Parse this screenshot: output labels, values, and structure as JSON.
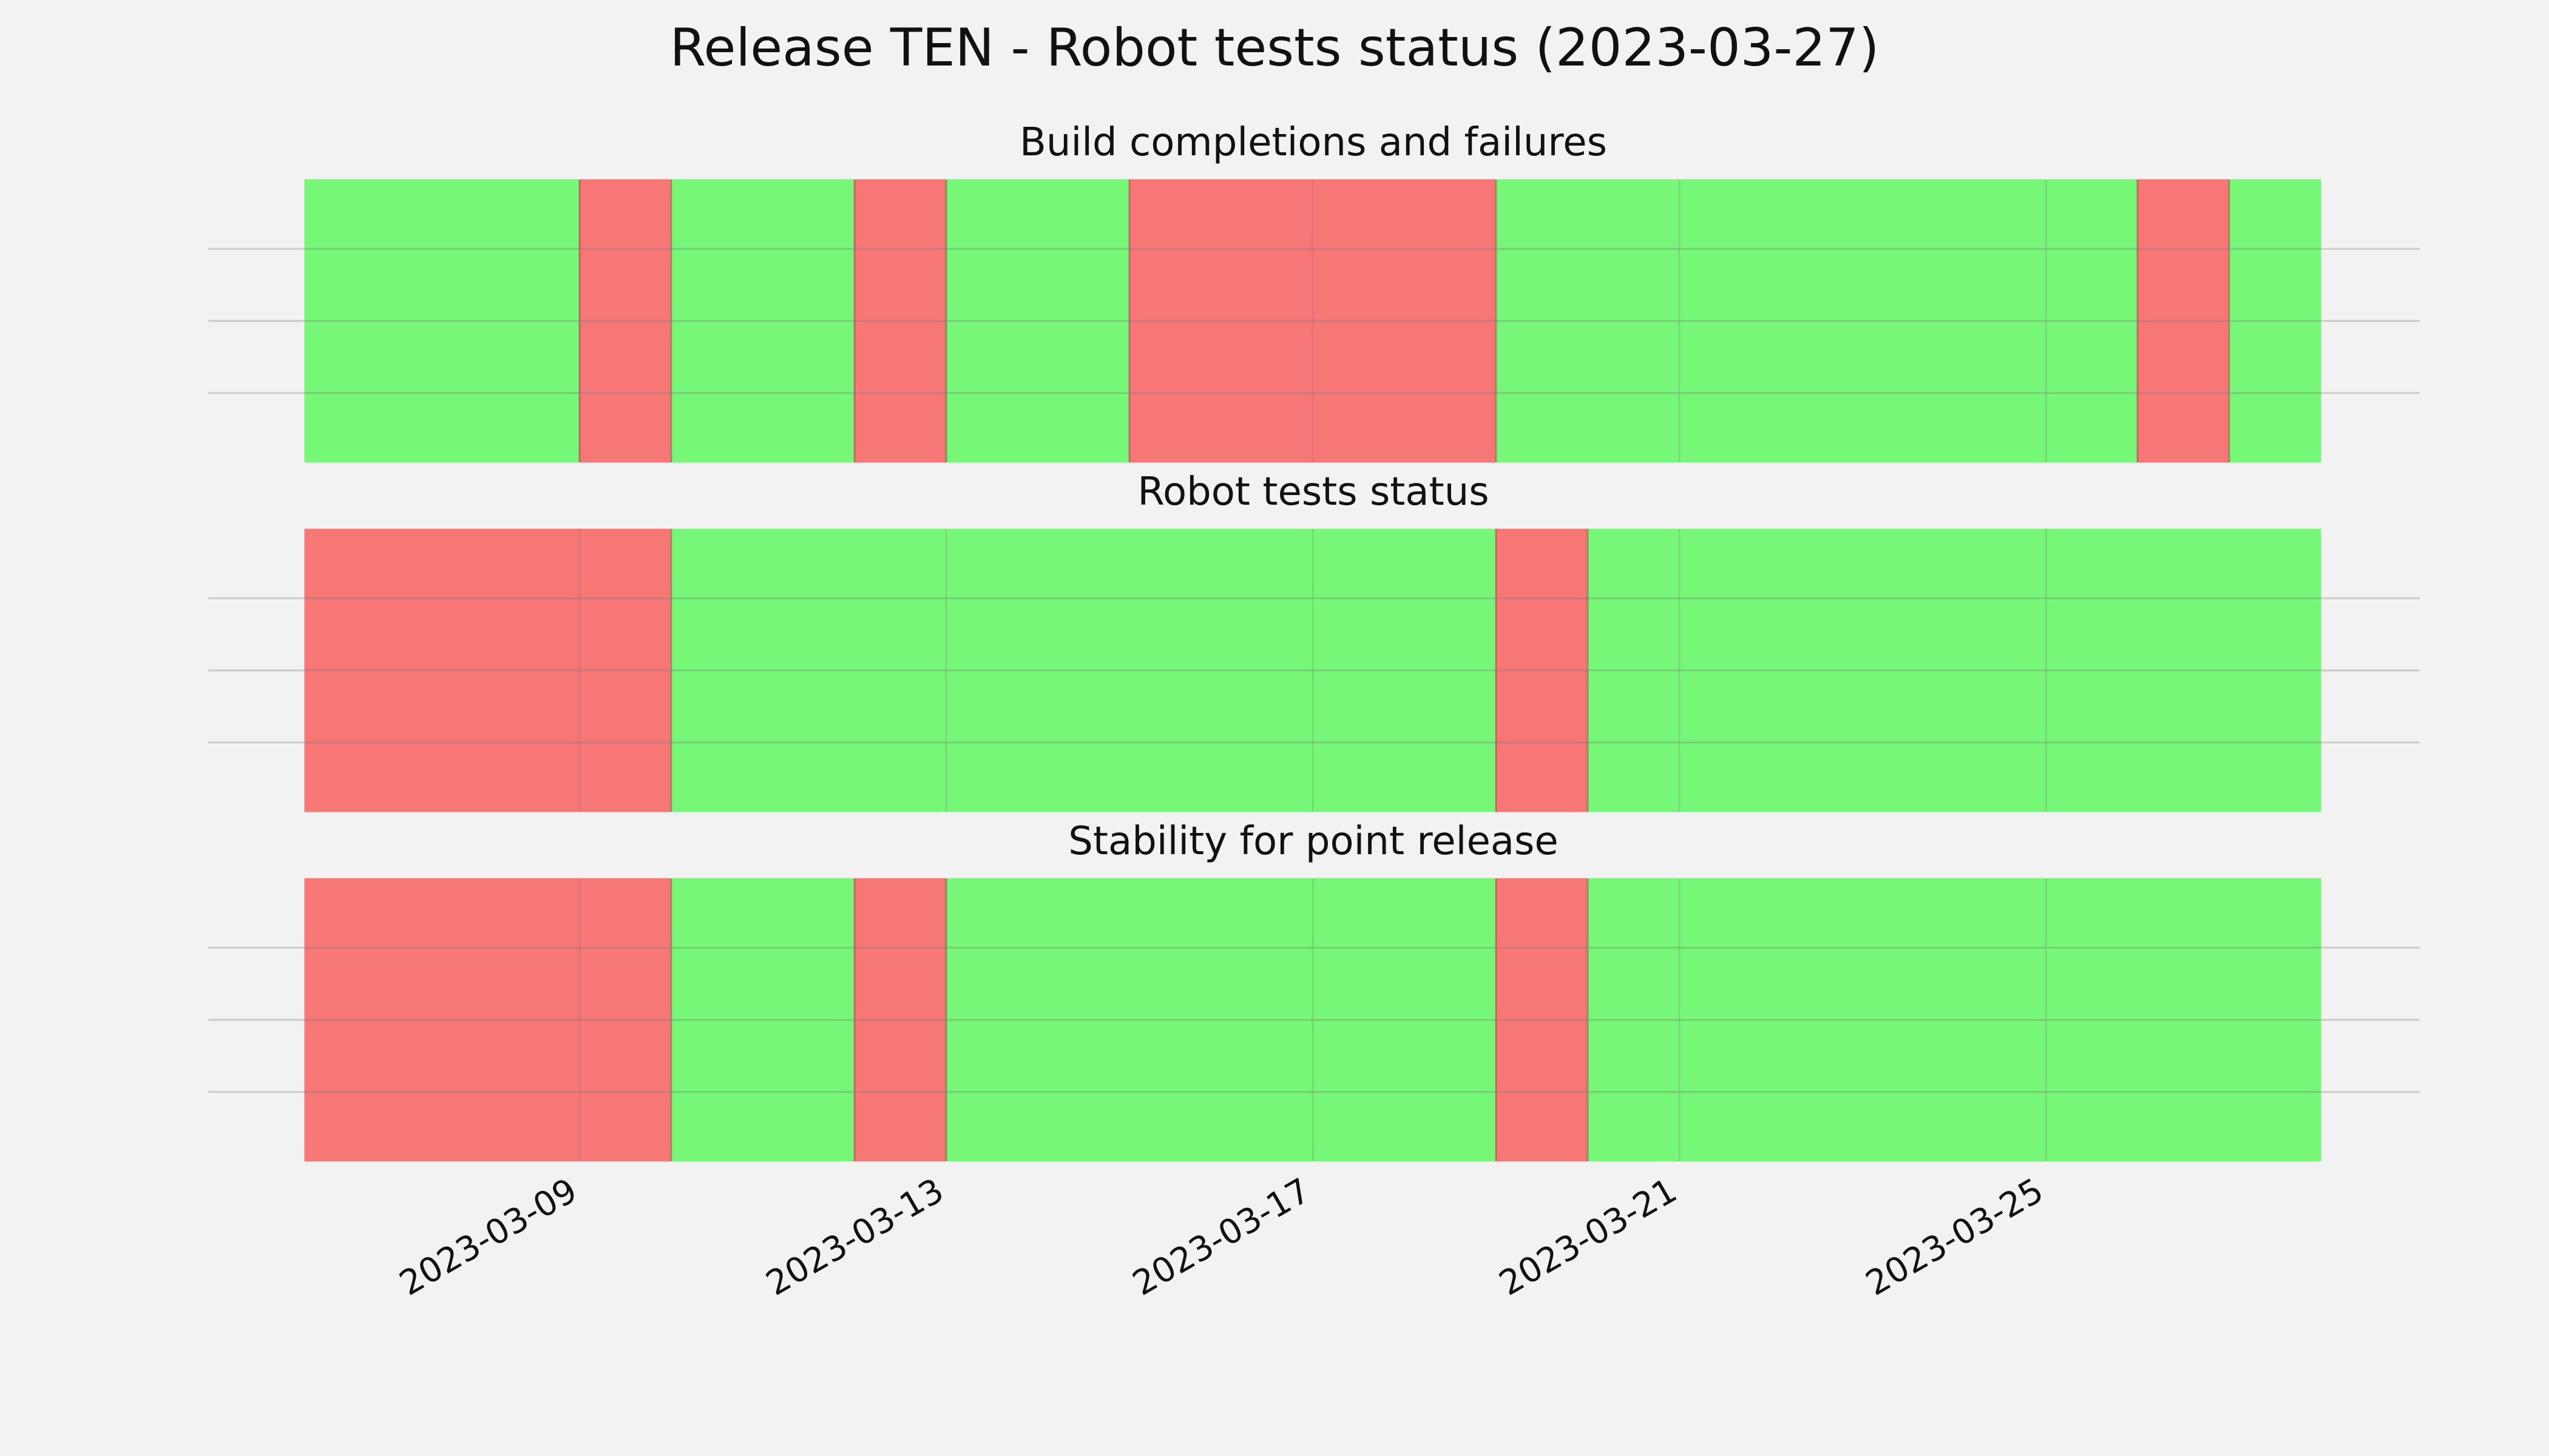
{
  "chart_data": {
    "type": "status-timeline",
    "title": "Release TEN - Robot tests status (2023-03-27)",
    "x_ticks": [
      "2023-03-09",
      "2023-03-13",
      "2023-03-17",
      "2023-03-21",
      "2023-03-25"
    ],
    "xlim": [
      "2023-03-06",
      "2023-03-28"
    ],
    "grid": true,
    "colors": {
      "pass": "#77f777",
      "fail": "#f77777",
      "background": "#f2f2f2",
      "grid": "#cccccc"
    },
    "panels": [
      {
        "title": "Build completions and failures",
        "segments": [
          {
            "start": "2023-03-06",
            "end": "2023-03-09",
            "status": "pass"
          },
          {
            "start": "2023-03-09",
            "end": "2023-03-10",
            "status": "fail"
          },
          {
            "start": "2023-03-10",
            "end": "2023-03-12",
            "status": "pass"
          },
          {
            "start": "2023-03-12",
            "end": "2023-03-13",
            "status": "fail"
          },
          {
            "start": "2023-03-13",
            "end": "2023-03-15",
            "status": "pass"
          },
          {
            "start": "2023-03-15",
            "end": "2023-03-19",
            "status": "fail"
          },
          {
            "start": "2023-03-19",
            "end": "2023-03-26",
            "status": "pass"
          },
          {
            "start": "2023-03-26",
            "end": "2023-03-27",
            "status": "fail"
          },
          {
            "start": "2023-03-27",
            "end": "2023-03-28",
            "status": "pass"
          }
        ]
      },
      {
        "title": "Robot tests status",
        "segments": [
          {
            "start": "2023-03-06",
            "end": "2023-03-10",
            "status": "fail"
          },
          {
            "start": "2023-03-10",
            "end": "2023-03-19",
            "status": "pass"
          },
          {
            "start": "2023-03-19",
            "end": "2023-03-20",
            "status": "fail"
          },
          {
            "start": "2023-03-20",
            "end": "2023-03-28",
            "status": "pass"
          }
        ]
      },
      {
        "title": "Stability for point release",
        "segments": [
          {
            "start": "2023-03-06",
            "end": "2023-03-10",
            "status": "fail"
          },
          {
            "start": "2023-03-10",
            "end": "2023-03-12",
            "status": "pass"
          },
          {
            "start": "2023-03-12",
            "end": "2023-03-13",
            "status": "fail"
          },
          {
            "start": "2023-03-13",
            "end": "2023-03-19",
            "status": "pass"
          },
          {
            "start": "2023-03-19",
            "end": "2023-03-20",
            "status": "fail"
          },
          {
            "start": "2023-03-20",
            "end": "2023-03-28",
            "status": "pass"
          }
        ]
      }
    ]
  }
}
